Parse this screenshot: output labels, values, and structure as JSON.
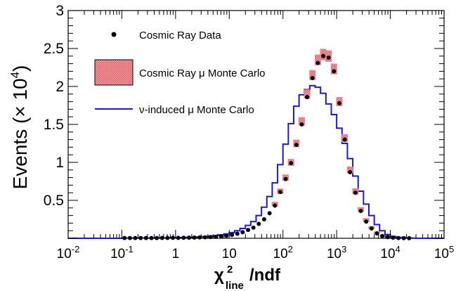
{
  "chart_data": {
    "type": "histogram",
    "xscale": "log",
    "xlim": [
      0.01,
      100000
    ],
    "ylim": [
      0,
      30000
    ],
    "y_multiplier_label": "× 10",
    "y_multiplier_exp": "4",
    "ylabel_text": "Events (",
    "ylabel_close": ")",
    "xlabel_parts": {
      "symbol": "χ",
      "sup": "2",
      "sub": "line",
      "suffix": "/ndf"
    },
    "x_ticks": [
      {
        "value": 0.01,
        "base": "10",
        "exp": "-2"
      },
      {
        "value": 0.1,
        "base": "10",
        "exp": "-1"
      },
      {
        "value": 1,
        "base": "1",
        "exp": ""
      },
      {
        "value": 10,
        "base": "10",
        "exp": ""
      },
      {
        "value": 100,
        "base": "10",
        "exp": "2"
      },
      {
        "value": 1000,
        "base": "10",
        "exp": "3"
      },
      {
        "value": 10000,
        "base": "10",
        "exp": "4"
      },
      {
        "value": 100000,
        "base": "10",
        "exp": "5"
      }
    ],
    "y_ticks": [
      {
        "value": 5000,
        "label": "0.5"
      },
      {
        "value": 10000,
        "label": "1"
      },
      {
        "value": 15000,
        "label": "1.5"
      },
      {
        "value": 20000,
        "label": "2"
      },
      {
        "value": 25000,
        "label": "2.5"
      },
      {
        "value": 30000,
        "label": "3"
      }
    ],
    "legend_position": "top-left",
    "legend": [
      {
        "kind": "marker",
        "label": "Cosmic Ray Data",
        "color": "#000000"
      },
      {
        "kind": "box",
        "label": "Cosmic Ray μ Monte Carlo",
        "color": "#e8505a"
      },
      {
        "kind": "line",
        "label": "ν-induced μ Monte Carlo",
        "color": "#1a1adf"
      }
    ],
    "series": [
      {
        "name": "Cosmic Ray Data",
        "kind": "points",
        "color": "#000000",
        "x": [
          0.1122,
          0.1413,
          0.1778,
          0.2239,
          0.2818,
          0.3548,
          0.4467,
          0.5623,
          0.7079,
          0.8913,
          1.122,
          1.413,
          1.778,
          2.239,
          2.818,
          3.548,
          4.467,
          5.623,
          7.079,
          8.913,
          11.22,
          14.13,
          17.78,
          22.39,
          28.18,
          35.48,
          44.67,
          56.23,
          70.79,
          89.13,
          112.2,
          141.3,
          177.8,
          223.9,
          281.8,
          354.8,
          446.7,
          562.3,
          707.9,
          891.3,
          1122,
          1413,
          1778,
          2239,
          2818,
          3548,
          4467,
          5623,
          7079,
          8913,
          11220,
          14130,
          17780,
          22390
        ],
        "y": [
          30,
          30,
          30,
          30,
          30,
          35,
          40,
          45,
          50,
          55,
          60,
          70,
          80,
          95,
          110,
          130,
          160,
          200,
          250,
          330,
          450,
          600,
          800,
          1100,
          1400,
          1900,
          2500,
          3300,
          4300,
          6100,
          7800,
          9900,
          12300,
          15000,
          18600,
          21100,
          23100,
          24000,
          23800,
          22000,
          17800,
          13000,
          8700,
          6000,
          3600,
          2200,
          1300,
          650,
          300,
          150,
          80,
          40,
          20,
          10
        ]
      },
      {
        "name": "Cosmic Ray μ Monte Carlo",
        "kind": "boxes",
        "color": "#e8505a",
        "x": [
          70.79,
          89.13,
          112.2,
          141.3,
          177.8,
          223.9,
          281.8,
          354.8,
          446.7,
          562.3,
          707.9,
          891.3,
          1122,
          1413,
          1778,
          2239,
          2818,
          3548,
          4467,
          5623,
          7079
        ],
        "y": [
          4500,
          6200,
          8000,
          10000,
          12500,
          15400,
          19000,
          21500,
          23500,
          24200,
          24000,
          22300,
          18000,
          13200,
          9000,
          6200,
          3800,
          2400,
          1400,
          750,
          350
        ],
        "err": [
          300,
          350,
          400,
          450,
          500,
          550,
          600,
          650,
          700,
          750,
          750,
          700,
          600,
          500,
          450,
          400,
          300,
          250,
          200,
          150,
          100
        ]
      },
      {
        "name": "ν-induced μ Monte Carlo",
        "kind": "step",
        "color": "#1a1adf",
        "edges": [
          0.01,
          0.1,
          0.5012,
          0.631,
          0.7943,
          1,
          1.259,
          1.585,
          1.995,
          2.512,
          3.162,
          3.981,
          5.012,
          6.31,
          7.943,
          10,
          12.59,
          15.85,
          19.95,
          25.12,
          31.62,
          39.81,
          50.12,
          63.1,
          79.43,
          100,
          125.9,
          158.5,
          199.5,
          251.2,
          316.2,
          398.1,
          501.2,
          631,
          794.3,
          1000,
          1259,
          1585,
          1995,
          2512,
          3162,
          3981,
          5012,
          6310,
          7943,
          10000,
          12590,
          15850,
          19950,
          25120,
          31620,
          100000
        ],
        "values": [
          0,
          40,
          50,
          60,
          70,
          80,
          100,
          120,
          150,
          180,
          220,
          280,
          350,
          450,
          580,
          750,
          1000,
          1300,
          1700,
          2200,
          3000,
          4100,
          5500,
          7300,
          9700,
          12400,
          15100,
          17400,
          18900,
          19600,
          20100,
          19900,
          19100,
          17700,
          16300,
          14500,
          12500,
          10500,
          8200,
          6200,
          4500,
          3000,
          1800,
          1000,
          500,
          250,
          120,
          60,
          30,
          15,
          0
        ]
      }
    ]
  }
}
